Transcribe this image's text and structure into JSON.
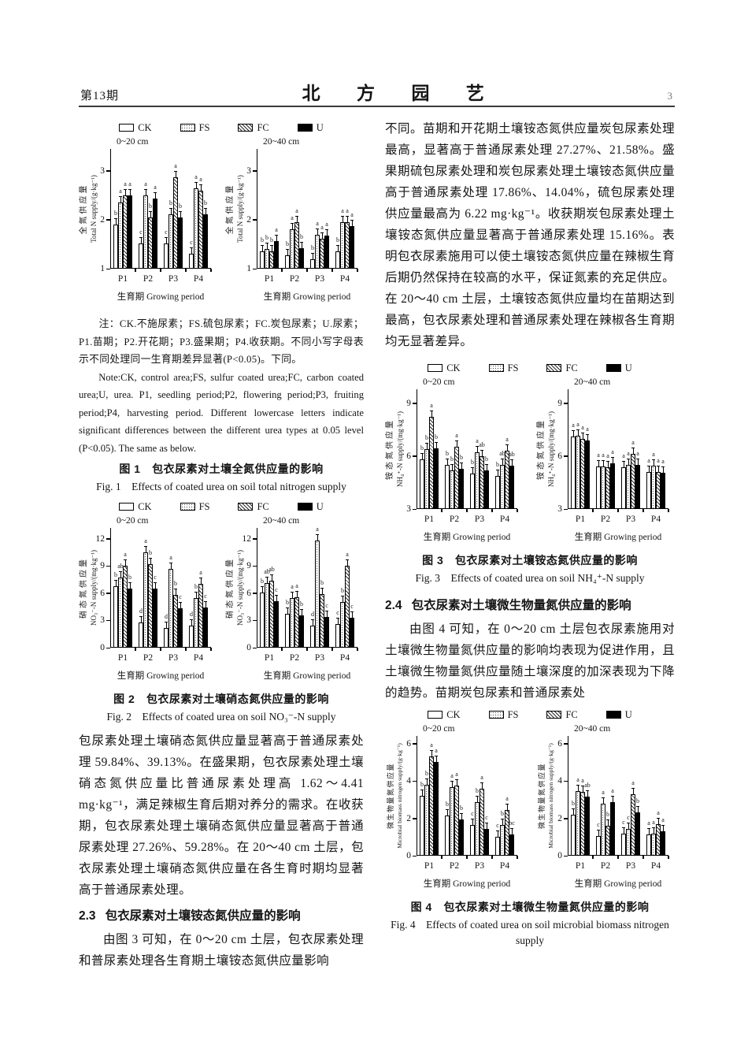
{
  "header": {
    "issue": "第13期",
    "journal": "北 方 园 艺",
    "page_number": "3"
  },
  "left_column": {
    "note_zh": "注：CK.不施尿素；FS.硫包尿素；FC.炭包尿素；U.尿素；P1.苗期；P2.开花期；P3.盛果期；P4.收获期。不同小写字母表示不同处理同一生育期差异显著(P<0.05)。下同。",
    "note_en": "Note:CK, control area;FS, sulfur coated urea;FC, carbon coated urea;U, urea. P1, seedling period;P2, flowering period;P3, fruiting period;P4, harvesting period. Different lowercase letters indicate significant differences between the different urea types at 0.05 level (P<0.05). The same as below.",
    "para_no3": "包尿素处理土壤硝态氮供应量显著高于普通尿素处理 59.84%、39.13%。在盛果期，包衣尿素处理土壤硝态氮供应量比普通尿素处理高 1.62～4.41 mg·kg⁻¹，满足辣椒生育后期对养分的需求。在收获期，包衣尿素处理土壤硝态氮供应量显著高于普通尿素处理 27.26%、59.28%。在 20～40 cm 土层，包衣尿素处理土壤硝态氮供应量在各生育时期均显著高于普通尿素处理。",
    "section_2_3": {
      "num": "2.3",
      "title": "包衣尿素对土壤铵态氮供应量的影响"
    },
    "para_2_3": "由图 3 可知，在 0～20 cm 土层，包衣尿素处理和普尿素处理各生育期土壤铵态氮供应量影响"
  },
  "right_column": {
    "para_nh4": "不同。苗期和开花期土壤铵态氮供应量炭包尿素处理最高，显著高于普通尿素处理 27.27%、21.58%。盛果期硫包尿素处理和炭包尿素处理土壤铵态氮供应量高于普通尿素处理 17.86%、14.04%，硫包尿素处理供应量最高为 6.22 mg·kg⁻¹。收获期炭包尿素处理土壤铵态氮供应量显著高于普通尿素处理 15.16%。表明包衣尿素施用可以使土壤铵态氮供应量在辣椒生育后期仍然保持在较高的水平，保证氮素的充足供应。在 20～40 cm 土层，土壤铵态氮供应量均在苗期达到最高，包衣尿素处理和普通尿素处理在辣椒各生育期均无显著差异。",
    "section_2_4": {
      "num": "2.4",
      "title": "包衣尿素对土壤微生物量氮供应量的影响"
    },
    "para_2_4": "由图 4 可知，在 0～20 cm 土层包衣尿素施用对土壤微生物量氮供应量的影响均表现为促进作用，且土壤微生物量氮供应量随土壤深度的加深表现为下降的趋势。苗期炭包尿素和普通尿素处"
  },
  "chart_data": [
    {
      "id": "fig1",
      "type": "bar",
      "caption_zh": "图 1　包衣尿素对土壤全氮供应量的影响",
      "caption_en": "Fig. 1　Effects of coated urea on soil total nitrogen supply",
      "legend": [
        "CK",
        "FS",
        "FC",
        "U"
      ],
      "legend_position": "top",
      "categories": [
        "P1",
        "P2",
        "P3",
        "P4"
      ],
      "xlabel": "生育期 Growing period",
      "panels": [
        {
          "title": "0~20 cm",
          "ylabel_zh": "全氮供应量",
          "ylabel_en": "Total N supply/(g·kg⁻¹)",
          "ylim": [
            1,
            3.45
          ],
          "yticks": [
            1,
            2,
            3
          ],
          "grid": false,
          "series": [
            {
              "name": "CK",
              "values": [
                1.9,
                1.52,
                1.52,
                1.3
              ],
              "letters": [
                "b",
                "c",
                "c",
                "c"
              ]
            },
            {
              "name": "FS",
              "values": [
                2.35,
                2.5,
                2.12,
                2.65
              ],
              "letters": [
                "a",
                "a",
                "b",
                "a"
              ]
            },
            {
              "name": "FC",
              "values": [
                2.5,
                2.05,
                2.87,
                2.6
              ],
              "letters": [
                "a",
                "b",
                "a",
                "a"
              ]
            },
            {
              "name": "U",
              "values": [
                2.5,
                2.43,
                2.05,
                2.12
              ],
              "letters": [
                "a",
                "a",
                "b",
                "b"
              ]
            }
          ]
        },
        {
          "title": "20~40 cm",
          "ylabel_zh": "全氮供应量",
          "ylabel_en": "Total N supply/(g·kg⁻¹)",
          "ylim": [
            1,
            3.45
          ],
          "yticks": [
            1,
            2,
            3
          ],
          "grid": false,
          "series": [
            {
              "name": "CK",
              "values": [
                1.35,
                1.28,
                1.2,
                1.35
              ],
              "letters": [
                "b",
                "b",
                "b",
                "b"
              ]
            },
            {
              "name": "FS",
              "values": [
                1.4,
                1.8,
                1.7,
                1.95
              ],
              "letters": [
                "b",
                "a",
                "a",
                "a"
              ]
            },
            {
              "name": "FC",
              "values": [
                1.35,
                1.95,
                1.62,
                1.95
              ],
              "letters": [
                "b",
                "a",
                "a",
                "a"
              ]
            },
            {
              "name": "U",
              "values": [
                1.57,
                1.42,
                1.68,
                1.87
              ],
              "letters": [
                "a",
                "b",
                "a",
                "a"
              ]
            }
          ]
        }
      ]
    },
    {
      "id": "fig2",
      "type": "bar",
      "caption_zh": "图 2　包衣尿素对土壤硝态氮供应量的影响",
      "caption_en": "Fig. 2　Effects of coated urea on soil NO₃⁻-N supply",
      "legend": [
        "CK",
        "FS",
        "FC",
        "U"
      ],
      "legend_position": "top",
      "categories": [
        "P1",
        "P2",
        "P3",
        "P4"
      ],
      "xlabel": "生育期 Growing period",
      "panels": [
        {
          "title": "0~20 cm",
          "ylabel_zh": "硝态氮供应量",
          "ylabel_en": "NO₃⁻-N supply/(mg·kg⁻¹)",
          "ylim": [
            0,
            13.2
          ],
          "yticks": [
            0,
            3,
            6,
            9,
            12
          ],
          "grid": false,
          "series": [
            {
              "name": "CK",
              "values": [
                6.8,
                2.8,
                2.2,
                2.4
              ],
              "letters": [
                "b",
                "d",
                "d",
                "d"
              ]
            },
            {
              "name": "FS",
              "values": [
                7.7,
                10.5,
                8.7,
                5.5
              ],
              "letters": [
                "ab",
                "a",
                "a",
                "b"
              ]
            },
            {
              "name": "FC",
              "values": [
                9.0,
                9.2,
                5.8,
                7.0
              ],
              "letters": [
                "a",
                "b",
                "b",
                "a"
              ]
            },
            {
              "name": "U",
              "values": [
                6.5,
                6.5,
                4.3,
                4.4
              ],
              "letters": [
                "b",
                "c",
                "c",
                "c"
              ]
            }
          ]
        },
        {
          "title": "20~40 cm",
          "ylabel_zh": "硝态氮供应量",
          "ylabel_en": "NO₃⁻-N supply/(mg·kg⁻¹)",
          "ylim": [
            0,
            13.2
          ],
          "yticks": [
            0,
            3,
            6,
            9,
            12
          ],
          "grid": false,
          "series": [
            {
              "name": "CK",
              "values": [
                6.1,
                3.7,
                2.4,
                2.6
              ],
              "letters": [
                "b",
                "b",
                "d",
                "c"
              ]
            },
            {
              "name": "FS",
              "values": [
                7.1,
                5.5,
                11.8,
                5.0
              ],
              "letters": [
                "ab",
                "a",
                "a",
                "b"
              ]
            },
            {
              "name": "FC",
              "values": [
                7.4,
                5.6,
                5.9,
                9.0
              ],
              "letters": [
                "ab",
                "a",
                "b",
                "a"
              ]
            },
            {
              "name": "U",
              "values": [
                5.1,
                3.6,
                3.4,
                3.3
              ],
              "letters": [
                "c",
                "b",
                "c",
                "c"
              ]
            }
          ]
        }
      ]
    },
    {
      "id": "fig3",
      "type": "bar",
      "caption_zh": "图 3　包衣尿素对土壤铵态氮供应量的影响",
      "caption_en": "Fig. 3　Effects of coated urea on soil NH₄⁺-N supply",
      "legend": [
        "CK",
        "FS",
        "FC",
        "U"
      ],
      "legend_position": "top",
      "categories": [
        "P1",
        "P2",
        "P3",
        "P4"
      ],
      "xlabel": "生育期 Growing period",
      "panels": [
        {
          "title": "0~20 cm",
          "ylabel_zh": "铵态氮供应量",
          "ylabel_en": "NH₄⁺-N supply/(mg·kg⁻¹)",
          "ylim": [
            3,
            9.8
          ],
          "yticks": [
            3,
            6,
            9
          ],
          "grid": false,
          "series": [
            {
              "name": "CK",
              "values": [
                5.8,
                5.5,
                5.0,
                4.9
              ],
              "letters": [
                "b",
                "b",
                "b",
                "b"
              ]
            },
            {
              "name": "FS",
              "values": [
                6.4,
                5.2,
                6.2,
                5.5
              ],
              "letters": [
                "b",
                "b",
                "a",
                "ab"
              ]
            },
            {
              "name": "FC",
              "values": [
                8.25,
                6.55,
                6.0,
                6.3
              ],
              "letters": [
                "a",
                "a",
                "ab",
                "a"
              ]
            },
            {
              "name": "U",
              "values": [
                6.45,
                5.3,
                5.2,
                5.45
              ],
              "letters": [
                "b",
                "b",
                "b",
                "ab"
              ]
            }
          ]
        },
        {
          "title": "20~40 cm",
          "ylabel_zh": "铵态氮供应量",
          "ylabel_en": "NH₄⁺-N supply/(mg·kg⁻¹)",
          "ylim": [
            3,
            9.8
          ],
          "yticks": [
            3,
            6,
            9
          ],
          "grid": false,
          "series": [
            {
              "name": "CK",
              "values": [
                7.1,
                5.4,
                5.35,
                5.1
              ],
              "letters": [
                "a",
                "a",
                "a",
                "a"
              ]
            },
            {
              "name": "FS",
              "values": [
                7.15,
                5.4,
                5.5,
                5.45
              ],
              "letters": [
                "a",
                "a",
                "a",
                "a"
              ]
            },
            {
              "name": "FC",
              "values": [
                7.0,
                5.35,
                6.15,
                5.1
              ],
              "letters": [
                "a",
                "a",
                "a",
                "a"
              ]
            },
            {
              "name": "U",
              "values": [
                6.9,
                5.6,
                5.5,
                5.05
              ],
              "letters": [
                "a",
                "a",
                "a",
                "a"
              ]
            }
          ]
        }
      ]
    },
    {
      "id": "fig4",
      "type": "bar",
      "caption_zh": "图 4　包衣尿素对土壤微生物量氮供应量的影响",
      "caption_en": "Fig. 4　Effects of coated urea on soil microbial biomass nitrogen supply",
      "legend": [
        "CK",
        "FS",
        "FC",
        "U"
      ],
      "legend_position": "top",
      "categories": [
        "P1",
        "P2",
        "P3",
        "P4"
      ],
      "xlabel": "生育期 Growing period",
      "panels": [
        {
          "title": "0~20 cm",
          "ylabel_zh": "微生物量氮供应量",
          "ylabel_en": "Microbial biomass nitrogen supply/(g·kg⁻¹)",
          "ylim": [
            0,
            6.4
          ],
          "yticks": [
            0,
            2,
            4,
            6
          ],
          "grid": false,
          "ylabel_small": true,
          "series": [
            {
              "name": "CK",
              "values": [
                3.2,
                2.15,
                1.65,
                1.0
              ],
              "letters": [
                "b",
                "b",
                "c",
                "c"
              ]
            },
            {
              "name": "FS",
              "values": [
                3.8,
                3.65,
                2.85,
                1.65
              ],
              "letters": [
                "b",
                "a",
                "b",
                "b"
              ]
            },
            {
              "name": "FC",
              "values": [
                5.3,
                3.75,
                3.6,
                2.45
              ],
              "letters": [
                "a",
                "a",
                "a",
                "a"
              ]
            },
            {
              "name": "U",
              "values": [
                5.0,
                1.95,
                1.45,
                1.15
              ],
              "letters": [
                "a",
                "b",
                "c",
                "bc"
              ]
            }
          ]
        },
        {
          "title": "20~40 cm",
          "ylabel_zh": "微生物量氮供应量",
          "ylabel_en": "Microbial biomass nitrogen supply/(g·kg⁻¹)",
          "ylim": [
            0,
            6.4
          ],
          "yticks": [
            0,
            2,
            4,
            6
          ],
          "grid": false,
          "ylabel_small": true,
          "series": [
            {
              "name": "CK",
              "values": [
                2.2,
                1.05,
                1.2,
                1.15
              ],
              "letters": [
                "b",
                "c",
                "c",
                "a"
              ]
            },
            {
              "name": "FS",
              "values": [
                3.45,
                2.8,
                1.45,
                1.2
              ],
              "letters": [
                "a",
                "a",
                "c",
                "a"
              ]
            },
            {
              "name": "FC",
              "values": [
                3.4,
                1.6,
                3.3,
                1.7
              ],
              "letters": [
                "a",
                "b",
                "a",
                "a"
              ]
            },
            {
              "name": "U",
              "values": [
                3.15,
                2.85,
                2.3,
                1.3
              ],
              "letters": [
                "ab",
                "a",
                "b",
                "a"
              ]
            }
          ]
        }
      ]
    }
  ]
}
